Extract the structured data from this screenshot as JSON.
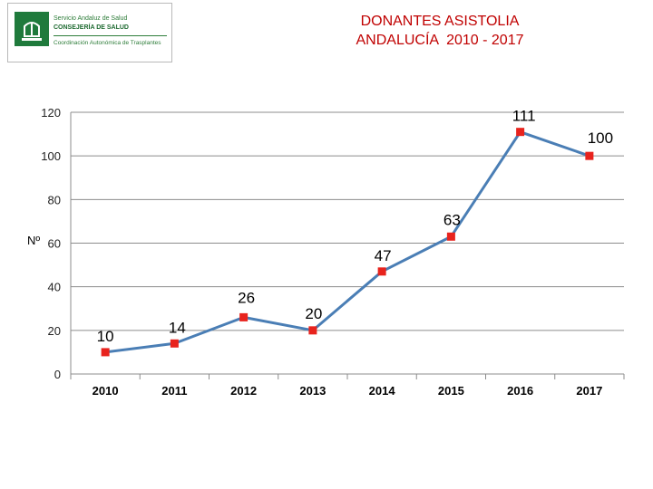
{
  "logo": {
    "line1": "Servicio Andaluz de Salud",
    "line2": "CONSEJERÍA DE SALUD",
    "line3": "Coordinación Autonómica de Trasplantes"
  },
  "title": {
    "line1": "DONANTES ASISTOLIA",
    "line2": "ANDALUCÍA  2010 - 2017"
  },
  "colors": {
    "line": "#4a7eb5",
    "marker": "#e8231d",
    "grid": "#8c8c8c",
    "title": "#c00000",
    "highlight_label": "#c00000"
  },
  "chart_data": {
    "type": "line",
    "title": "DONANTES ASISTOLIA ANDALUCÍA  2010 - 2017",
    "xlabel": "",
    "ylabel": "Nº",
    "categories": [
      "2010",
      "2011",
      "2012",
      "2013",
      "2014",
      "2015",
      "2016",
      "2017"
    ],
    "series": [
      {
        "values": [
          10,
          14,
          26,
          20,
          47,
          63,
          111,
          100
        ]
      }
    ],
    "data_labels": [
      "10",
      "14",
      "26",
      "20",
      "47",
      "63",
      "111",
      "100"
    ],
    "highlighted_label_index": 7,
    "yticks": [
      "0",
      "20",
      "40",
      "60",
      "80",
      "100",
      "120"
    ],
    "ylim": [
      0,
      120
    ],
    "grid": true,
    "legend": "none"
  }
}
